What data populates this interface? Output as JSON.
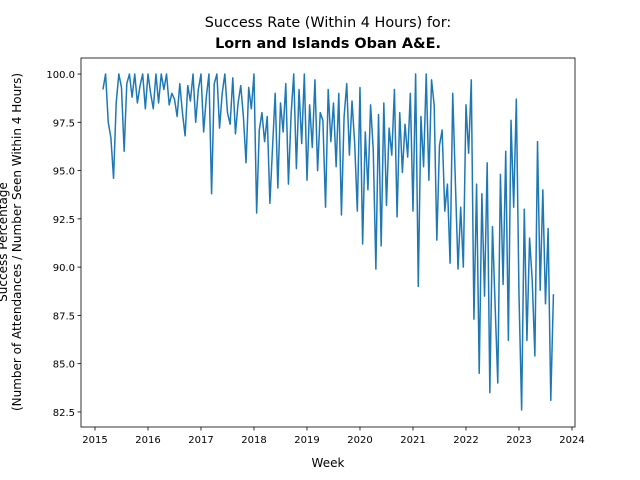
{
  "chart_data": {
    "type": "line",
    "title": "Success Rate (Within 4 Hours) for:",
    "subtitle": "Lorn and Islands Oban A&E.",
    "x_label": "Week",
    "y_label": [
      "Success Percentage",
      "(Number of Attendances / Number Seen Within 4 Hours)"
    ],
    "xlim": [
      2014.736,
      2024.057
    ],
    "ylim": [
      81.72,
      100.83
    ],
    "xticks": [
      2015,
      2016,
      2017,
      2018,
      2019,
      2020,
      2021,
      2022,
      2023,
      2024
    ],
    "yticks": [
      82.5,
      {
        "value": 85,
        "label": "85.0"
      },
      87.5,
      {
        "value": 90,
        "label": "90.0"
      },
      92.5,
      {
        "value": 95,
        "label": "95.0"
      },
      97.5,
      {
        "value": 100,
        "label": "100.0"
      }
    ],
    "grid": false,
    "series": [
      {
        "color": "#1f77b4",
        "x": [
          2015.15,
          2015.2,
          2015.25,
          2015.3,
          2015.35,
          2015.4,
          2015.45,
          2015.5,
          2015.55,
          2015.6,
          2015.65,
          2015.7,
          2015.75,
          2015.8,
          2015.85,
          2015.9,
          2015.95,
          2016,
          2016.05,
          2016.1,
          2016.15,
          2016.2,
          2016.25,
          2016.3,
          2016.35,
          2016.4,
          2016.45,
          2016.5,
          2016.55,
          2016.6,
          2016.65,
          2016.7,
          2016.75,
          2016.8,
          2016.85,
          2016.9,
          2016.95,
          2017,
          2017.05,
          2017.1,
          2017.15,
          2017.2,
          2017.25,
          2017.3,
          2017.35,
          2017.4,
          2017.45,
          2017.5,
          2017.55,
          2017.6,
          2017.65,
          2017.7,
          2017.75,
          2017.8,
          2017.85,
          2017.9,
          2017.95,
          2018,
          2018.05,
          2018.1,
          2018.15,
          2018.2,
          2018.25,
          2018.3,
          2018.35,
          2018.4,
          2018.45,
          2018.5,
          2018.55,
          2018.6,
          2018.65,
          2018.7,
          2018.75,
          2018.8,
          2018.85,
          2018.9,
          2018.95,
          2019,
          2019.05,
          2019.1,
          2019.15,
          2019.2,
          2019.25,
          2019.3,
          2019.35,
          2019.4,
          2019.45,
          2019.5,
          2019.55,
          2019.6,
          2019.65,
          2019.7,
          2019.75,
          2019.8,
          2019.85,
          2019.9,
          2019.95,
          2020,
          2020.05,
          2020.1,
          2020.15,
          2020.2,
          2020.25,
          2020.3,
          2020.35,
          2020.4,
          2020.45,
          2020.5,
          2020.55,
          2020.6,
          2020.65,
          2020.7,
          2020.75,
          2020.8,
          2020.85,
          2020.9,
          2020.95,
          2021,
          2021.05,
          2021.1,
          2021.15,
          2021.2,
          2021.25,
          2021.3,
          2021.35,
          2021.4,
          2021.45,
          2021.5,
          2021.55,
          2021.6,
          2021.65,
          2021.7,
          2021.75,
          2021.8,
          2021.85,
          2021.9,
          2021.95,
          2022,
          2022.05,
          2022.1,
          2022.15,
          2022.2,
          2022.25,
          2022.3,
          2022.35,
          2022.4,
          2022.45,
          2022.5,
          2022.55,
          2022.6,
          2022.65,
          2022.7,
          2022.75,
          2022.8,
          2022.85,
          2022.9,
          2022.95,
          2023,
          2023.05,
          2023.1,
          2023.15,
          2023.2,
          2023.25,
          2023.3,
          2023.35,
          2023.4,
          2023.45,
          2023.5,
          2023.55,
          2023.6,
          2023.65
        ],
        "values": [
          99.2,
          100,
          97.5,
          96.7,
          94.6,
          98.5,
          100,
          99.3,
          96,
          99.5,
          100,
          98.8,
          100,
          98.5,
          99.4,
          100,
          98.2,
          100,
          99,
          98.2,
          100,
          98.5,
          100,
          99.2,
          100,
          98.4,
          99,
          98.7,
          97.8,
          99.5,
          98,
          96.8,
          99.4,
          98.6,
          100,
          97.5,
          99.2,
          100,
          97,
          98.8,
          100,
          93.8,
          99.5,
          100,
          97.2,
          99,
          100,
          98,
          97.4,
          99.8,
          96.9,
          98.5,
          99.4,
          97.8,
          95.4,
          99.3,
          98.2,
          100,
          92.8,
          97.1,
          98,
          96.5,
          97.8,
          93.3,
          96.2,
          99,
          94.1,
          98.5,
          97,
          99.5,
          94.3,
          97.9,
          100,
          95.1,
          99.2,
          96.4,
          100,
          94.5,
          98.4,
          96.2,
          99.7,
          95,
          98,
          97.6,
          93.1,
          99.2,
          96.5,
          98.5,
          95.2,
          99,
          92.7,
          97.8,
          99.5,
          95.8,
          98.6,
          96.4,
          92.9,
          99.3,
          91.2,
          97,
          94,
          98.4,
          96.1,
          89.9,
          97.9,
          91.1,
          98.5,
          93.2,
          97.2,
          95.8,
          99.2,
          92.6,
          98,
          94.9,
          97.4,
          95.7,
          99,
          92.9,
          100,
          89,
          97.8,
          95.2,
          100,
          94.5,
          99.7,
          98.4,
          91.4,
          96.3,
          97.1,
          92.9,
          94.3,
          90.2,
          99,
          94.4,
          89.9,
          93.1,
          90,
          98.4,
          95.9,
          99.7,
          87.3,
          94.3,
          84.5,
          93.8,
          88.5,
          95.4,
          83.5,
          92.1,
          88,
          84,
          94.8,
          89.1,
          96,
          86.2,
          97.6,
          93.1,
          98.7,
          88.6,
          82.6,
          93,
          86.2,
          91.5,
          89.3,
          85.4,
          96.5,
          88.8,
          94,
          88.1,
          92,
          83.1,
          88.6
        ]
      }
    ]
  }
}
